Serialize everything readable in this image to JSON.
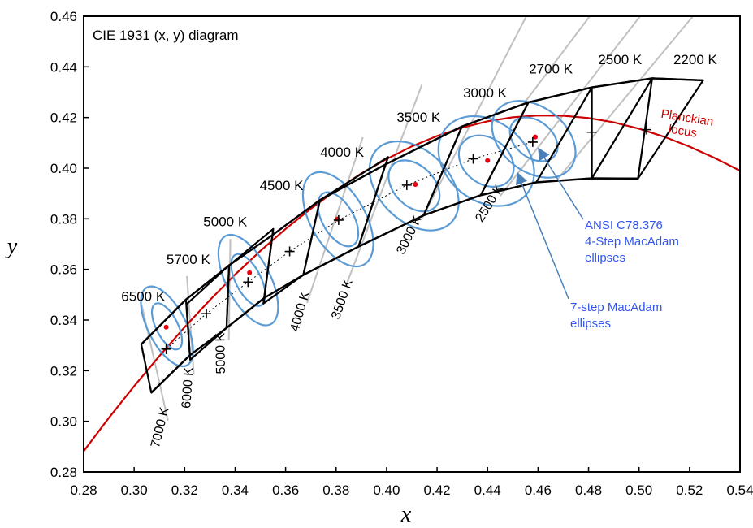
{
  "chart_data": {
    "type": "diagram",
    "title": "CIE 1931 (x, y) diagram",
    "xlabel": "x",
    "ylabel": "y",
    "xlim": [
      0.28,
      0.54
    ],
    "ylim": [
      0.28,
      0.46
    ],
    "x_ticks": [
      "0.28",
      "0.30",
      "0.32",
      "0.34",
      "0.36",
      "0.38",
      "0.40",
      "0.42",
      "0.44",
      "0.46",
      "0.48",
      "0.50",
      "0.52",
      "0.54"
    ],
    "y_ticks": [
      "0.28",
      "0.30",
      "0.32",
      "0.34",
      "0.36",
      "0.38",
      "0.40",
      "0.42",
      "0.44",
      "0.46"
    ],
    "grid": false,
    "colors": {
      "planckian": "#cc0000",
      "ellipse": "#5b9bd5",
      "quad": "#000000",
      "isotemp": "#c0c0c0",
      "annotation": "#3355ee",
      "arrow": "#4a7fb8"
    },
    "planckian_label": "Planckian locus",
    "planckian_locus": [
      [
        0.28,
        0.2882
      ],
      [
        0.29,
        0.3014
      ],
      [
        0.3,
        0.3139
      ],
      [
        0.31,
        0.3258
      ],
      [
        0.32,
        0.3372
      ],
      [
        0.33,
        0.3479
      ],
      [
        0.34,
        0.358
      ],
      [
        0.35,
        0.3673
      ],
      [
        0.36,
        0.376
      ],
      [
        0.37,
        0.384
      ],
      [
        0.38,
        0.3913
      ],
      [
        0.39,
        0.3979
      ],
      [
        0.4,
        0.4036
      ],
      [
        0.41,
        0.4086
      ],
      [
        0.42,
        0.4127
      ],
      [
        0.43,
        0.416
      ],
      [
        0.44,
        0.4185
      ],
      [
        0.45,
        0.4201
      ],
      [
        0.46,
        0.4208
      ],
      [
        0.47,
        0.4207
      ],
      [
        0.48,
        0.4198
      ],
      [
        0.49,
        0.4181
      ],
      [
        0.5,
        0.4156
      ],
      [
        0.51,
        0.4124
      ],
      [
        0.52,
        0.4085
      ],
      [
        0.53,
        0.404
      ],
      [
        0.54,
        0.399
      ]
    ],
    "upper_boundary": [
      [
        0.3028,
        0.3304
      ],
      [
        0.3205,
        0.3481
      ],
      [
        0.3376,
        0.3616
      ],
      [
        0.3548,
        0.3736
      ],
      [
        0.3736,
        0.3874
      ],
      [
        0.3996,
        0.4015
      ],
      [
        0.4299,
        0.4165
      ],
      [
        0.4562,
        0.426
      ],
      [
        0.4813,
        0.4319
      ],
      [
        0.5052,
        0.4355
      ],
      [
        0.5254,
        0.4347
      ]
    ],
    "lower_boundary": [
      [
        0.3068,
        0.3113
      ],
      [
        0.3221,
        0.3261
      ],
      [
        0.3366,
        0.3369
      ],
      [
        0.3515,
        0.3487
      ],
      [
        0.367,
        0.3578
      ],
      [
        0.3889,
        0.369
      ],
      [
        0.4147,
        0.3814
      ],
      [
        0.4373,
        0.3893
      ],
      [
        0.4593,
        0.3944
      ],
      [
        0.4813,
        0.396
      ],
      [
        0.4996,
        0.3959
      ]
    ],
    "quads": [
      {
        "label": "6500 K",
        "pts": [
          [
            0.3028,
            0.3304
          ],
          [
            0.3205,
            0.3481
          ],
          [
            0.3221,
            0.3261
          ],
          [
            0.3068,
            0.3113
          ]
        ]
      },
      {
        "label": "5700 K",
        "pts": [
          [
            0.3207,
            0.3462
          ],
          [
            0.3376,
            0.3616
          ],
          [
            0.3366,
            0.3369
          ],
          [
            0.3222,
            0.3243
          ]
        ]
      },
      {
        "label": "5000 K",
        "pts": [
          [
            0.3376,
            0.3616
          ],
          [
            0.3551,
            0.376
          ],
          [
            0.3515,
            0.3487
          ],
          [
            0.3366,
            0.3369
          ]
        ]
      },
      {
        "label": "4500 K",
        "pts": [
          [
            0.3548,
            0.3736
          ],
          [
            0.3736,
            0.3874
          ],
          [
            0.367,
            0.3578
          ],
          [
            0.3512,
            0.3465
          ]
        ]
      },
      {
        "label": "4000 K",
        "pts": [
          [
            0.3736,
            0.3874
          ],
          [
            0.4006,
            0.4044
          ],
          [
            0.3889,
            0.369
          ],
          [
            0.367,
            0.3578
          ]
        ]
      },
      {
        "label": "3500 K",
        "pts": [
          [
            0.3996,
            0.4015
          ],
          [
            0.4299,
            0.4165
          ],
          [
            0.4147,
            0.3814
          ],
          [
            0.3889,
            0.369
          ]
        ]
      },
      {
        "label": "3000 K",
        "pts": [
          [
            0.4299,
            0.4165
          ],
          [
            0.4562,
            0.426
          ],
          [
            0.4373,
            0.3893
          ],
          [
            0.4147,
            0.3814
          ]
        ]
      },
      {
        "label": "2700 K",
        "pts": [
          [
            0.4562,
            0.426
          ],
          [
            0.4813,
            0.4319
          ],
          [
            0.4593,
            0.3944
          ],
          [
            0.4373,
            0.3893
          ]
        ]
      },
      {
        "label": "2500 K",
        "pts": [
          [
            0.4813,
            0.4319
          ],
          [
            0.5052,
            0.4355
          ],
          [
            0.4996,
            0.3959
          ],
          [
            0.4813,
            0.396
          ]
        ]
      },
      {
        "label": "2200 K",
        "pts": [
          [
            0.5052,
            0.4355
          ],
          [
            0.5254,
            0.4347
          ],
          [
            0.4996,
            0.3959
          ],
          [
            0.4813,
            0.396
          ]
        ]
      }
    ],
    "cct_labels": [
      {
        "text": "6500 K",
        "x": 0.2949,
        "y": 0.3475
      },
      {
        "text": "5700 K",
        "x": 0.3128,
        "y": 0.3621
      },
      {
        "text": "5000 K",
        "x": 0.3274,
        "y": 0.377
      },
      {
        "text": "4500 K",
        "x": 0.3497,
        "y": 0.3914
      },
      {
        "text": "4000 K",
        "x": 0.3737,
        "y": 0.4045
      },
      {
        "text": "3500 K",
        "x": 0.404,
        "y": 0.4183
      },
      {
        "text": "3000 K",
        "x": 0.4303,
        "y": 0.4279
      },
      {
        "text": "2700 K",
        "x": 0.4564,
        "y": 0.4373
      },
      {
        "text": "2500 K",
        "x": 0.4838,
        "y": 0.441
      },
      {
        "text": "2200 K",
        "x": 0.5136,
        "y": 0.441
      }
    ],
    "ellipses_7step": [
      {
        "cx": 0.313,
        "cy": 0.3375,
        "rx": 0.0075,
        "ry": 0.0173,
        "rot": -27
      },
      {
        "cx": 0.3452,
        "cy": 0.3558,
        "rx": 0.0087,
        "ry": 0.0196,
        "rot": -27
      },
      {
        "cx": 0.3808,
        "cy": 0.3798,
        "rx": 0.0108,
        "ry": 0.0206,
        "rot": -30
      },
      {
        "cx": 0.4109,
        "cy": 0.393,
        "rx": 0.014,
        "ry": 0.0206,
        "rot": -45
      },
      {
        "cx": 0.4395,
        "cy": 0.4028,
        "rx": 0.0158,
        "ry": 0.0206,
        "rot": -52
      },
      {
        "cx": 0.4583,
        "cy": 0.4114,
        "rx": 0.0128,
        "ry": 0.0184,
        "rot": -52
      }
    ],
    "ellipses_4step": [
      {
        "cx": 0.313,
        "cy": 0.3375,
        "rx": 0.0043,
        "ry": 0.01,
        "rot": -27
      },
      {
        "cx": 0.3452,
        "cy": 0.3558,
        "rx": 0.005,
        "ry": 0.0112,
        "rot": -27
      },
      {
        "cx": 0.3808,
        "cy": 0.3798,
        "rx": 0.0062,
        "ry": 0.0118,
        "rot": -30
      },
      {
        "cx": 0.4109,
        "cy": 0.393,
        "rx": 0.008,
        "ry": 0.0118,
        "rot": -45
      },
      {
        "cx": 0.4395,
        "cy": 0.4028,
        "rx": 0.009,
        "ry": 0.0118,
        "rot": -52
      },
      {
        "cx": 0.4583,
        "cy": 0.4114,
        "rx": 0.0073,
        "ry": 0.0105,
        "rot": -52
      }
    ],
    "red_points": [
      [
        0.3127,
        0.3372
      ],
      [
        0.3457,
        0.3587
      ],
      [
        0.3805,
        0.3799
      ],
      [
        0.4114,
        0.3936
      ],
      [
        0.44,
        0.403
      ],
      [
        0.4589,
        0.4123
      ]
    ],
    "plus_points": [
      [
        0.3127,
        0.3285
      ],
      [
        0.3286,
        0.3425
      ],
      [
        0.3451,
        0.355
      ],
      [
        0.3616,
        0.3671
      ],
      [
        0.381,
        0.3795
      ],
      [
        0.408,
        0.3933
      ],
      [
        0.4343,
        0.4037
      ],
      [
        0.4579,
        0.4103
      ],
      [
        0.4813,
        0.4142
      ],
      [
        0.503,
        0.4152
      ]
    ],
    "isotemp_lines": [
      {
        "label": "7000 K",
        "x1": 0.303,
        "y1": 0.346,
        "x2": 0.3134,
        "y2": 0.3003,
        "lx": 0.3098,
        "ly": 0.2893,
        "rot": -76
      },
      {
        "label": "6000 K",
        "x1": 0.3209,
        "y1": 0.3574,
        "x2": 0.3236,
        "y2": 0.3188,
        "lx": 0.3222,
        "ly": 0.305,
        "rot": -86
      },
      {
        "label": "5000 K",
        "x1": 0.3381,
        "y1": 0.372,
        "x2": 0.3375,
        "y2": 0.3321,
        "lx": 0.336,
        "ly": 0.3187,
        "rot": -91
      },
      {
        "label": "4000 K",
        "x1": 0.3906,
        "y1": 0.4122,
        "x2": 0.3685,
        "y2": 0.3468,
        "lx": 0.365,
        "ly": 0.3351,
        "rot": -74
      },
      {
        "label": "3500 K",
        "x1": 0.414,
        "y1": 0.433,
        "x2": 0.3838,
        "y2": 0.3532,
        "lx": 0.3812,
        "ly": 0.34,
        "rot": -71
      },
      {
        "label": "3000 K",
        "x1": 0.4564,
        "y1": 0.462,
        "x2": 0.4141,
        "y2": 0.3803,
        "lx": 0.4068,
        "ly": 0.3656,
        "rot": -64
      },
      {
        "label": "2500 K",
        "x1": 0.502,
        "y1": 0.462,
        "x2": 0.445,
        "y2": 0.389,
        "lx": 0.4378,
        "ly": 0.3784,
        "rot": -58
      }
    ],
    "isotemp_extra": [
      {
        "x1": 0.482,
        "y1": 0.462,
        "x2": 0.454,
        "y2": 0.425
      },
      {
        "x1": 0.523,
        "y1": 0.462,
        "x2": 0.468,
        "y2": 0.396
      }
    ],
    "annotation_4step": [
      "ANSI C78.376",
      "4-Step MacAdam",
      "ellipses"
    ],
    "annotation_7step": [
      "7-step MacAdam",
      "ellipses"
    ]
  }
}
